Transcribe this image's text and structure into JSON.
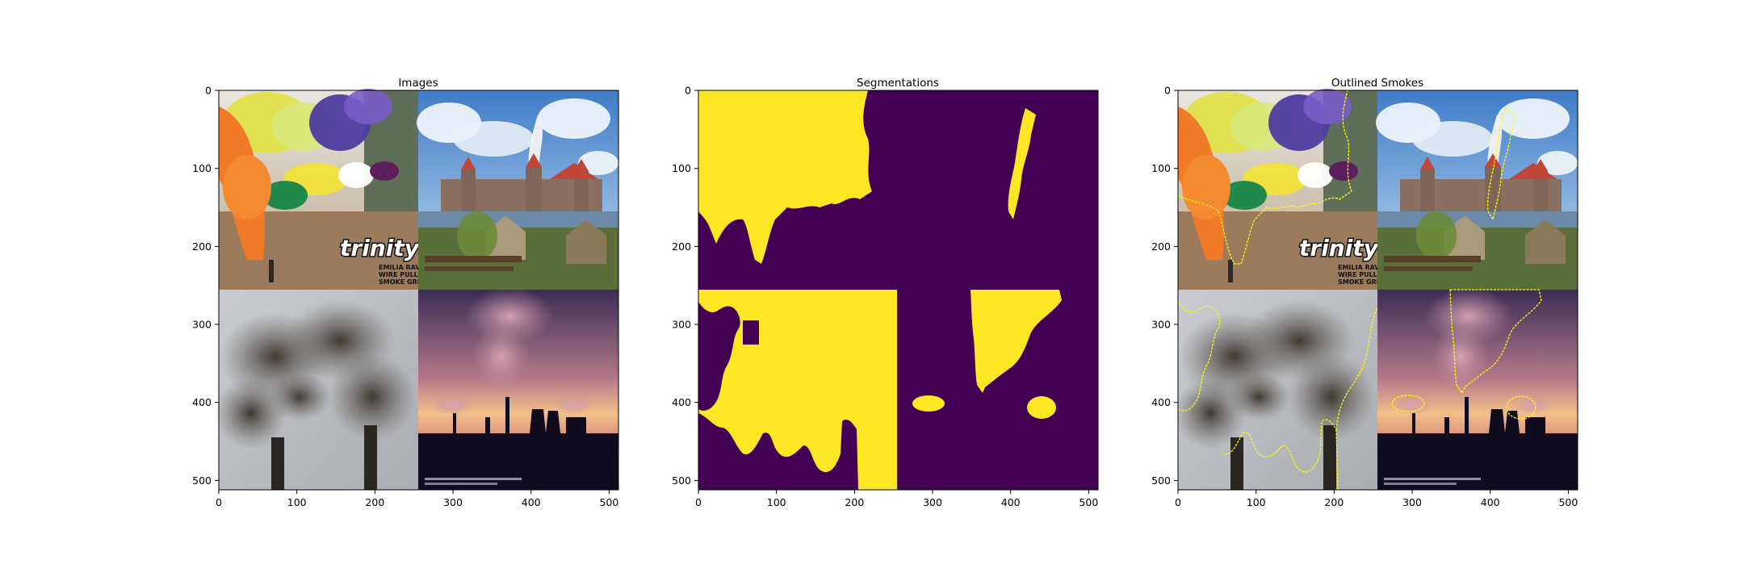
{
  "figure": {
    "panels": [
      {
        "title": "Images",
        "xticks": [
          "0",
          "100",
          "200",
          "300",
          "400",
          "500"
        ],
        "yticks": [
          "0",
          "100",
          "200",
          "300",
          "400",
          "500"
        ],
        "content": "photo-grid",
        "logo_text": [
          "trinity",
          "EMILIA RAVE",
          "WIRE PULL",
          "SMOKE GRENADE"
        ]
      },
      {
        "title": "Segmentations",
        "xticks": [
          "0",
          "100",
          "200",
          "300",
          "400",
          "500"
        ],
        "yticks": [
          "0",
          "100",
          "200",
          "300",
          "400",
          "500"
        ],
        "content": "segmentation-mask",
        "colors": {
          "background": "#440154",
          "smoke": "#fde725"
        }
      },
      {
        "title": "Outlined Smokes",
        "xticks": [
          "0",
          "100",
          "200",
          "300",
          "400",
          "500"
        ],
        "yticks": [
          "0",
          "100",
          "200",
          "300",
          "400",
          "500"
        ],
        "content": "photo-grid-with-outlines",
        "logo_text": [
          "trinity",
          "EMILIA RAVE",
          "WIRE PULL",
          "SMOKE GRENADE"
        ],
        "outline_color": "#ffff00"
      }
    ]
  }
}
